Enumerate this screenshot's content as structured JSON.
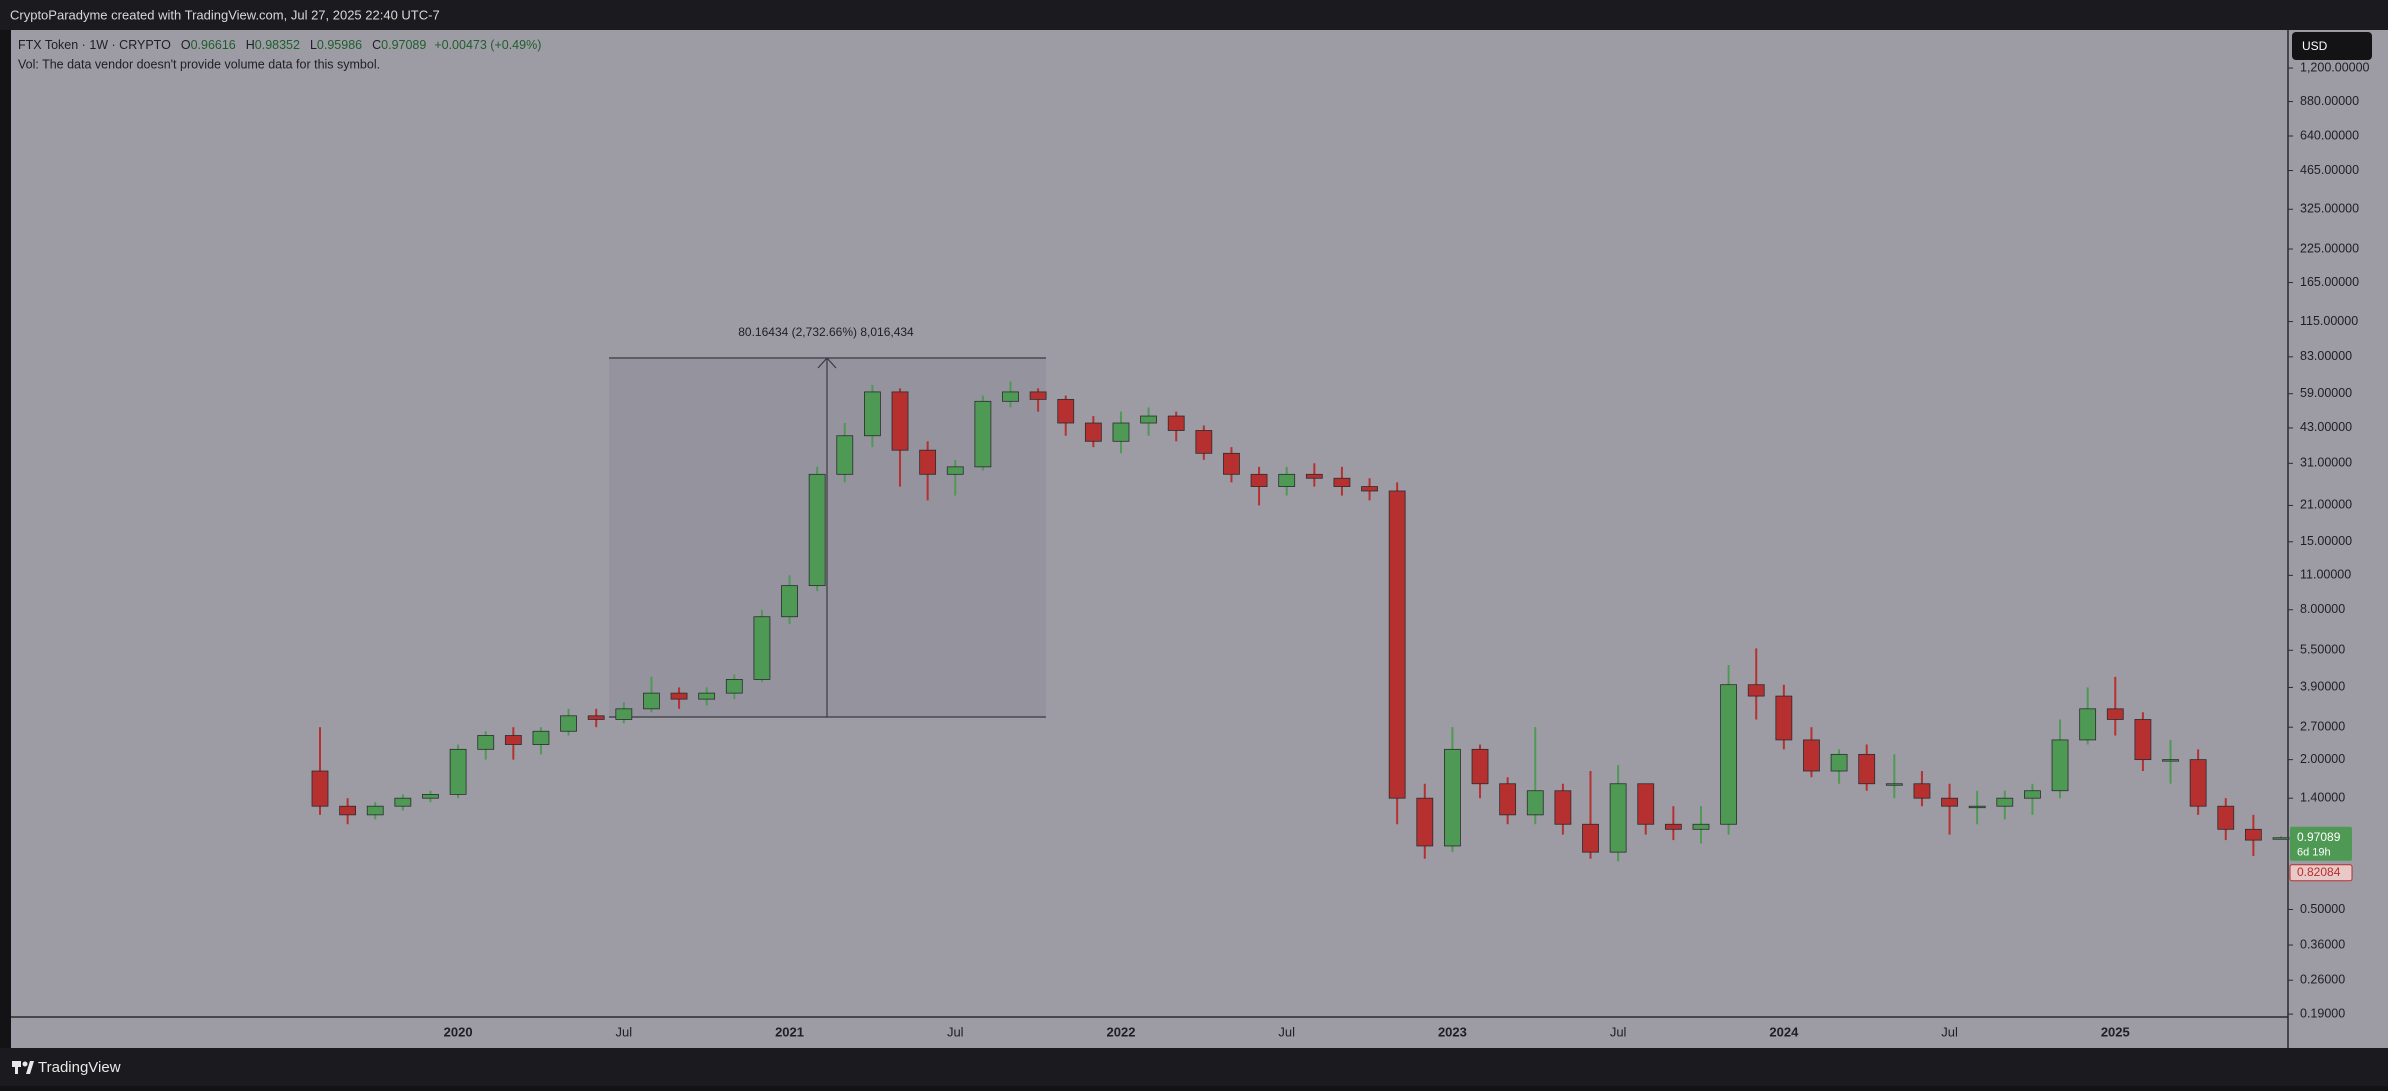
{
  "header": {
    "attribution": "CryptoParadyme created with TradingView.com, Jul 27, 2025 22:40 UTC-7"
  },
  "chart_data": {
    "type": "candlestick",
    "symbol": "FTX Token · 1W · CRYPTO",
    "ohlc_keys": [
      "O",
      "H",
      "L",
      "C"
    ],
    "change": "+0.00473 (+0.49%)",
    "volume_note": "Vol: The data vendor doesn't provide volume data for this symbol.",
    "categories": [
      null,
      null,
      null,
      null,
      null,
      "2020",
      null,
      null,
      null,
      null,
      null,
      "Jul",
      null,
      null,
      null,
      null,
      null,
      "2021",
      null,
      null,
      null,
      null,
      null,
      "Jul",
      null,
      null,
      null,
      null,
      null,
      "2022",
      null,
      null,
      null,
      null,
      null,
      "Jul",
      null,
      null,
      null,
      null,
      null,
      "2023",
      null,
      null,
      null,
      null,
      null,
      "Jul",
      null,
      null,
      null,
      null,
      null,
      "2024",
      null,
      null,
      null,
      null,
      null,
      "Jul",
      null,
      null,
      null,
      null,
      null,
      "2025",
      null,
      null,
      null,
      null,
      null,
      null
    ],
    "open": [
      1.8,
      1.3,
      1.2,
      1.3,
      1.4,
      1.45,
      2.2,
      2.5,
      2.3,
      2.6,
      3.0,
      2.9,
      3.2,
      3.7,
      3.5,
      3.7,
      4.2,
      7.5,
      10,
      28,
      40,
      60,
      35,
      28,
      30,
      55,
      60,
      56,
      45,
      38,
      45,
      48,
      42,
      34,
      28,
      25,
      28,
      27,
      25,
      24,
      1.4,
      0.9,
      2.2,
      1.6,
      1.2,
      1.5,
      1.1,
      0.85,
      1.6,
      1.1,
      1.05,
      1.1,
      4.0,
      3.6,
      2.4,
      1.8,
      2.1,
      1.6,
      1.6,
      1.4,
      1.3,
      1.3,
      1.4,
      1.5,
      2.4,
      3.2,
      2.9,
      2.0,
      2.0,
      1.3,
      1.05,
      0.96616
    ],
    "high": [
      2.7,
      1.4,
      1.35,
      1.45,
      1.5,
      2.3,
      2.6,
      2.7,
      2.7,
      3.2,
      3.2,
      3.4,
      4.3,
      3.9,
      3.9,
      4.4,
      8.0,
      11,
      30,
      45,
      64,
      62,
      38,
      32,
      58,
      66,
      62,
      58,
      48,
      50,
      52,
      50,
      44,
      36,
      30,
      30,
      31,
      30,
      27,
      26,
      1.6,
      2.7,
      2.3,
      1.7,
      2.7,
      1.6,
      1.8,
      1.9,
      1.6,
      1.3,
      1.3,
      4.8,
      5.6,
      4.0,
      2.7,
      2.2,
      2.3,
      2.1,
      1.8,
      1.6,
      1.5,
      1.5,
      1.6,
      2.9,
      3.9,
      4.3,
      3.1,
      2.4,
      2.2,
      1.4,
      1.2,
      0.98352
    ],
    "low": [
      1.2,
      1.1,
      1.15,
      1.25,
      1.35,
      1.4,
      2.0,
      2.0,
      2.1,
      2.5,
      2.7,
      2.8,
      3.1,
      3.2,
      3.3,
      3.5,
      4.1,
      7.0,
      9.5,
      26,
      36,
      25,
      22,
      23,
      29,
      52,
      50,
      40,
      36,
      34,
      40,
      38,
      32,
      26,
      21,
      23,
      25,
      23,
      22,
      1.1,
      0.8,
      0.85,
      1.4,
      1.1,
      1.1,
      1.0,
      0.8,
      0.78,
      1.0,
      0.95,
      0.92,
      1.0,
      2.9,
      2.2,
      1.7,
      1.6,
      1.5,
      1.4,
      1.3,
      1.0,
      1.1,
      1.15,
      1.2,
      1.4,
      2.3,
      2.5,
      1.8,
      1.6,
      1.2,
      0.95,
      0.82084,
      0.95986
    ],
    "close": [
      1.3,
      1.2,
      1.3,
      1.4,
      1.45,
      2.2,
      2.5,
      2.3,
      2.6,
      3.0,
      2.9,
      3.2,
      3.7,
      3.5,
      3.7,
      4.2,
      7.5,
      10,
      28,
      40,
      60,
      35,
      28,
      30,
      55,
      60,
      56,
      45,
      38,
      45,
      48,
      42,
      34,
      28,
      25,
      28,
      27,
      25,
      24,
      1.4,
      0.9,
      2.2,
      1.6,
      1.2,
      1.5,
      1.1,
      0.85,
      1.6,
      1.1,
      1.05,
      1.1,
      4.0,
      3.6,
      2.4,
      1.8,
      2.1,
      1.6,
      1.6,
      1.4,
      1.3,
      1.3,
      1.4,
      1.5,
      2.4,
      3.2,
      2.9,
      2.0,
      2.0,
      1.3,
      1.05,
      0.95,
      0.97089
    ],
    "up_color": "#4e9a54",
    "down_color": "#b5302e",
    "log_scale": true,
    "ylim": [
      0.185,
      1706
    ],
    "yticks": [
      {
        "value": 1200,
        "label": "1,200.00000"
      },
      {
        "value": 880,
        "label": "880.00000"
      },
      {
        "value": 640,
        "label": "640.00000"
      },
      {
        "value": 465,
        "label": "465.00000"
      },
      {
        "value": 325,
        "label": "325.00000"
      },
      {
        "value": 225,
        "label": "225.00000"
      },
      {
        "value": 165,
        "label": "165.00000"
      },
      {
        "value": 115,
        "label": "115.00000"
      },
      {
        "value": 83,
        "label": "83.00000"
      },
      {
        "value": 59,
        "label": "59.00000"
      },
      {
        "value": 43,
        "label": "43.00000"
      },
      {
        "value": 31,
        "label": "31.00000"
      },
      {
        "value": 21,
        "label": "21.00000"
      },
      {
        "value": 15,
        "label": "15.00000"
      },
      {
        "value": 11,
        "label": "11.00000"
      },
      {
        "value": 8,
        "label": "8.00000"
      },
      {
        "value": 5.5,
        "label": "5.50000"
      },
      {
        "value": 3.9,
        "label": "3.90000"
      },
      {
        "value": 2.7,
        "label": "2.70000"
      },
      {
        "value": 2,
        "label": "2.00000"
      },
      {
        "value": 1.4,
        "label": "1.40000"
      },
      {
        "value": 0.5,
        "label": "0.50000"
      },
      {
        "value": 0.36,
        "label": "0.36000"
      },
      {
        "value": 0.26,
        "label": "0.26000"
      },
      {
        "value": 0.19,
        "label": "0.19000"
      }
    ],
    "currency": "USD",
    "last_price": 0.97089,
    "countdown": "6d 19h",
    "low_price": 0.82084,
    "measure_label": "80.16434 (2,732.66%) 8,016,434"
  },
  "footer": {
    "brand": "TradingView"
  }
}
